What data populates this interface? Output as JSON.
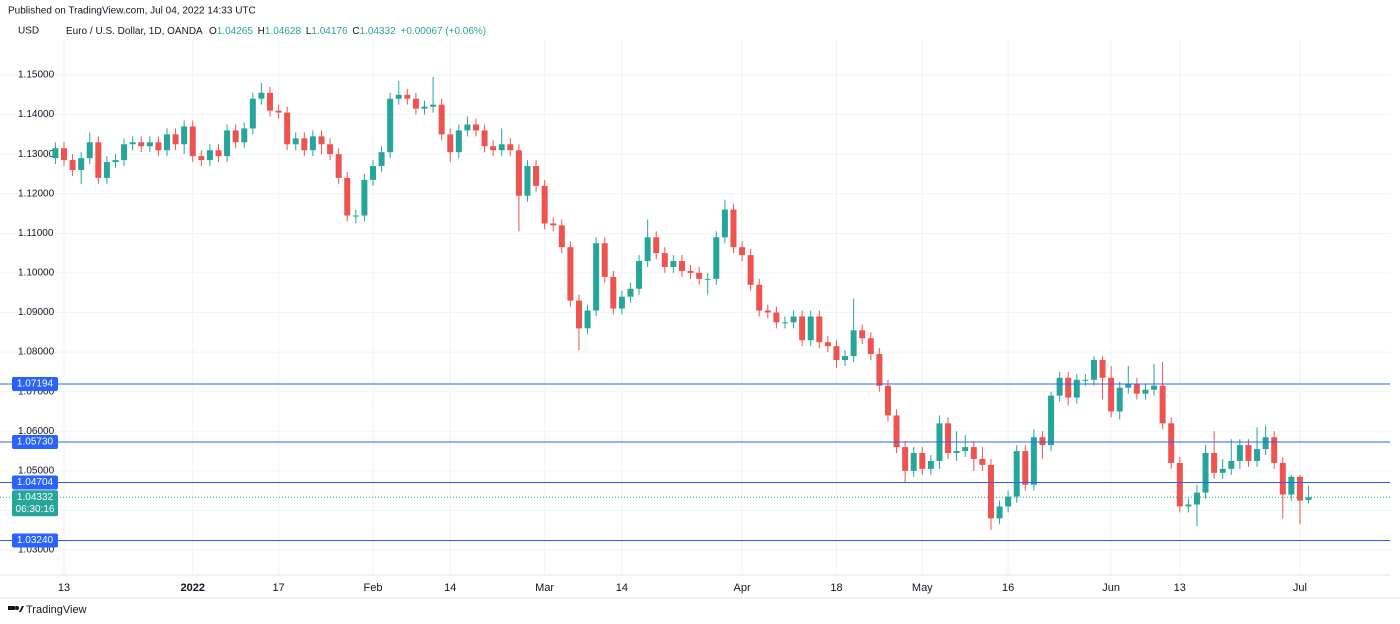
{
  "header": {
    "published": "Published on TradingView.com, Jul 04, 2022 14:33 UTC",
    "currency": "USD",
    "symbol": "Euro / U.S. Dollar, 1D, OANDA",
    "o_label": "O",
    "h_label": "H",
    "l_label": "L",
    "c_label": "C",
    "change": "+0.00067 (+0.06%)"
  },
  "footer": "TradingView",
  "chart_data": {
    "type": "candlestick",
    "up_color": "#26a69a",
    "down_color": "#ef5350",
    "grid": true,
    "categories": [
      null,
      "13",
      null,
      null,
      null,
      null,
      null,
      null,
      null,
      null,
      null,
      null,
      null,
      null,
      null,
      null,
      "2022",
      null,
      null,
      null,
      null,
      null,
      null,
      null,
      null,
      null,
      "17",
      null,
      null,
      null,
      null,
      null,
      null,
      null,
      null,
      null,
      null,
      "Feb",
      null,
      null,
      null,
      null,
      null,
      null,
      null,
      null,
      "14",
      null,
      null,
      null,
      null,
      null,
      null,
      null,
      null,
      null,
      null,
      "Mar",
      null,
      null,
      null,
      null,
      null,
      null,
      null,
      null,
      "14",
      null,
      null,
      null,
      null,
      null,
      null,
      null,
      null,
      null,
      null,
      null,
      null,
      null,
      "Apr",
      null,
      null,
      null,
      null,
      null,
      null,
      null,
      null,
      null,
      null,
      "18",
      null,
      null,
      null,
      null,
      null,
      null,
      null,
      null,
      null,
      "May",
      null,
      null,
      null,
      null,
      null,
      null,
      null,
      null,
      null,
      "16",
      null,
      null,
      null,
      null,
      null,
      null,
      null,
      null,
      null,
      null,
      null,
      "Jun",
      null,
      null,
      null,
      null,
      null,
      null,
      null,
      "13",
      null,
      null,
      null,
      null,
      null,
      null,
      null,
      null,
      null,
      null,
      null,
      null,
      null,
      "Jul",
      null
    ],
    "open": [
      1.129,
      1.1315,
      1.1285,
      1.126,
      1.129,
      1.133,
      1.124,
      1.128,
      1.1285,
      1.1325,
      1.133,
      1.132,
      1.133,
      1.131,
      1.135,
      1.1325,
      1.137,
      1.1295,
      1.1285,
      1.131,
      1.1295,
      1.136,
      1.133,
      1.1365,
      1.144,
      1.1455,
      1.141,
      1.1405,
      1.1325,
      1.134,
      1.131,
      1.1345,
      1.1325,
      1.13,
      1.124,
      1.1145,
      1.1145,
      1.1235,
      1.127,
      1.1305,
      1.144,
      1.145,
      1.144,
      1.1415,
      1.142,
      1.1425,
      1.135,
      1.1305,
      1.136,
      1.1375,
      1.136,
      1.132,
      1.131,
      1.1325,
      1.131,
      1.1195,
      1.127,
      1.122,
      1.1125,
      1.112,
      1.1065,
      1.093,
      1.086,
      1.0905,
      1.1075,
      1.099,
      1.091,
      1.094,
      1.096,
      1.103,
      1.109,
      1.105,
      1.1015,
      1.103,
      1.1005,
      1.1,
      1.0985,
      1.0985,
      1.109,
      1.116,
      1.1065,
      1.1045,
      1.097,
      1.0905,
      1.09,
      1.0875,
      1.0875,
      1.089,
      1.083,
      1.089,
      1.0825,
      1.0815,
      1.078,
      1.079,
      1.0855,
      1.0835,
      1.0795,
      1.0715,
      1.064,
      1.056,
      1.05,
      1.0545,
      1.0505,
      1.0525,
      1.062,
      1.0545,
      1.055,
      1.056,
      1.053,
      1.0515,
      1.038,
      1.041,
      1.0435,
      1.055,
      1.0465,
      1.0585,
      1.0565,
      1.069,
      1.0735,
      1.0685,
      1.073,
      1.073,
      1.078,
      1.0735,
      1.065,
      1.071,
      1.072,
      1.0695,
      1.0705,
      1.0715,
      1.062,
      1.052,
      1.041,
      1.0415,
      1.0445,
      1.0545,
      1.0495,
      1.0505,
      1.0525,
      1.0565,
      1.0525,
      1.0555,
      1.0585,
      1.052,
      1.044,
      1.0485,
      1.04265
    ],
    "high": [
      1.133,
      1.133,
      1.13,
      1.1305,
      1.1355,
      1.1345,
      1.1295,
      1.13,
      1.134,
      1.1345,
      1.1345,
      1.1345,
      1.1345,
      1.1365,
      1.1365,
      1.1385,
      1.1385,
      1.131,
      1.1325,
      1.1325,
      1.1375,
      1.1375,
      1.138,
      1.1455,
      1.148,
      1.147,
      1.1425,
      1.142,
      1.1355,
      1.1355,
      1.136,
      1.136,
      1.134,
      1.1315,
      1.1255,
      1.116,
      1.125,
      1.1285,
      1.132,
      1.1455,
      1.1485,
      1.1465,
      1.1455,
      1.1435,
      1.1495,
      1.144,
      1.1365,
      1.1375,
      1.1395,
      1.139,
      1.1375,
      1.1335,
      1.1365,
      1.134,
      1.1325,
      1.1285,
      1.1285,
      1.1235,
      1.114,
      1.1135,
      1.108,
      1.0945,
      1.092,
      1.109,
      1.109,
      1.1005,
      1.0955,
      1.0975,
      1.1045,
      1.1135,
      1.1105,
      1.1065,
      1.1045,
      1.1045,
      1.102,
      1.1015,
      1.1,
      1.1105,
      1.1185,
      1.1175,
      1.108,
      1.106,
      1.0985,
      1.092,
      1.0915,
      1.089,
      1.0905,
      1.0905,
      1.0905,
      1.0905,
      1.084,
      1.083,
      1.0805,
      1.0935,
      1.087,
      1.085,
      1.081,
      1.073,
      1.0655,
      1.0575,
      1.056,
      1.056,
      1.054,
      1.064,
      1.0635,
      1.06,
      1.059,
      1.0575,
      1.056,
      1.053,
      1.0425,
      1.045,
      1.0565,
      1.0565,
      1.0605,
      1.06,
      1.07,
      1.075,
      1.075,
      1.0745,
      1.0745,
      1.079,
      1.079,
      1.0765,
      1.0725,
      1.0765,
      1.0735,
      1.072,
      1.077,
      1.0775,
      1.0635,
      1.0535,
      1.043,
      1.0465,
      1.0565,
      1.06,
      1.053,
      1.058,
      1.058,
      1.058,
      1.061,
      1.0615,
      1.06,
      1.0535,
      1.049,
      1.049,
      1.04628
    ],
    "low": [
      1.1275,
      1.127,
      1.1245,
      1.1225,
      1.1275,
      1.1225,
      1.1225,
      1.1265,
      1.127,
      1.131,
      1.1305,
      1.1305,
      1.1295,
      1.1295,
      1.131,
      1.13,
      1.128,
      1.127,
      1.127,
      1.128,
      1.128,
      1.1315,
      1.1315,
      1.135,
      1.1425,
      1.1395,
      1.139,
      1.131,
      1.131,
      1.1295,
      1.1295,
      1.13,
      1.1285,
      1.1225,
      1.113,
      1.1125,
      1.113,
      1.122,
      1.1255,
      1.129,
      1.1425,
      1.1425,
      1.14,
      1.14,
      1.1405,
      1.1335,
      1.128,
      1.129,
      1.1345,
      1.1345,
      1.1305,
      1.1295,
      1.1295,
      1.1295,
      1.1105,
      1.118,
      1.1205,
      1.111,
      1.1105,
      1.105,
      1.0915,
      1.0805,
      1.0845,
      1.089,
      1.0975,
      1.0895,
      1.0895,
      1.0925,
      1.0945,
      1.1015,
      1.1035,
      1.1,
      1.1,
      1.099,
      1.0985,
      1.097,
      1.0945,
      1.097,
      1.1075,
      1.105,
      1.103,
      1.0955,
      1.089,
      1.0885,
      1.086,
      1.086,
      1.086,
      1.0815,
      1.0815,
      1.081,
      1.08,
      1.076,
      1.0765,
      1.0775,
      1.082,
      1.078,
      1.07,
      1.0625,
      1.0545,
      1.047,
      1.0485,
      1.049,
      1.049,
      1.0505,
      1.053,
      1.0525,
      1.0535,
      1.05,
      1.05,
      1.035,
      1.0365,
      1.0395,
      1.042,
      1.045,
      1.045,
      1.053,
      1.055,
      1.0675,
      1.0665,
      1.067,
      1.0715,
      1.0715,
      1.068,
      1.0635,
      1.063,
      1.0695,
      1.068,
      1.068,
      1.069,
      1.0605,
      1.0505,
      1.0395,
      1.0395,
      1.036,
      1.043,
      1.048,
      1.048,
      1.049,
      1.0505,
      1.051,
      1.051,
      1.054,
      1.0505,
      1.038,
      1.0425,
      1.0365,
      1.04176
    ],
    "close": [
      1.1315,
      1.1285,
      1.126,
      1.129,
      1.133,
      1.124,
      1.128,
      1.1285,
      1.1325,
      1.133,
      1.132,
      1.133,
      1.131,
      1.135,
      1.1325,
      1.137,
      1.1295,
      1.1285,
      1.131,
      1.1295,
      1.136,
      1.133,
      1.1365,
      1.144,
      1.1455,
      1.141,
      1.1405,
      1.1325,
      1.134,
      1.131,
      1.1345,
      1.1325,
      1.13,
      1.124,
      1.1145,
      1.1145,
      1.1235,
      1.127,
      1.1305,
      1.144,
      1.145,
      1.144,
      1.1415,
      1.142,
      1.1425,
      1.135,
      1.1305,
      1.136,
      1.1375,
      1.136,
      1.132,
      1.131,
      1.1325,
      1.131,
      1.1195,
      1.127,
      1.122,
      1.1125,
      1.112,
      1.1065,
      1.093,
      1.086,
      1.0905,
      1.1075,
      1.099,
      1.091,
      1.094,
      1.096,
      1.103,
      1.109,
      1.105,
      1.1015,
      1.103,
      1.1005,
      1.1,
      1.0985,
      1.0985,
      1.109,
      1.116,
      1.1065,
      1.1045,
      1.097,
      1.0905,
      1.09,
      1.0875,
      1.0875,
      1.089,
      1.083,
      1.089,
      1.0825,
      1.0815,
      1.078,
      1.079,
      1.0855,
      1.0835,
      1.0795,
      1.0715,
      1.064,
      1.056,
      1.05,
      1.0545,
      1.0505,
      1.0525,
      1.062,
      1.0545,
      1.055,
      1.056,
      1.053,
      1.0515,
      1.038,
      1.041,
      1.0435,
      1.055,
      1.0465,
      1.0585,
      1.0565,
      1.069,
      1.0735,
      1.0685,
      1.073,
      1.073,
      1.078,
      1.0735,
      1.065,
      1.071,
      1.072,
      1.0695,
      1.0705,
      1.0715,
      1.062,
      1.052,
      1.041,
      1.0415,
      1.0445,
      1.0545,
      1.0495,
      1.0505,
      1.0525,
      1.0565,
      1.0525,
      1.0555,
      1.0585,
      1.052,
      1.044,
      1.0485,
      1.0425,
      1.04332
    ],
    "ylim": [
      1.02495,
      1.15884
    ],
    "yticks": [
      {
        "value": 1.03,
        "label": "1.03000"
      },
      {
        "value": 1.04,
        "label": "1.04000"
      },
      {
        "value": 1.05,
        "label": "1.05000"
      },
      {
        "value": 1.06,
        "label": "1.06000"
      },
      {
        "value": 1.07,
        "label": "1.07000"
      },
      {
        "value": 1.08,
        "label": "1.08000"
      },
      {
        "value": 1.09,
        "label": "1.09000"
      },
      {
        "value": 1.1,
        "label": "1.10000"
      },
      {
        "value": 1.11,
        "label": "1.11000"
      },
      {
        "value": 1.12,
        "label": "1.12000"
      },
      {
        "value": 1.13,
        "label": "1.13000"
      },
      {
        "value": 1.14,
        "label": "1.14000"
      },
      {
        "value": 1.15,
        "label": "1.15000"
      }
    ],
    "hlines": [
      {
        "value": 1.07194,
        "label": "1.07194"
      },
      {
        "value": 1.0573,
        "label": "1.05730"
      },
      {
        "value": 1.04704,
        "label": "1.04704"
      },
      {
        "value": 1.0324,
        "label": "1.03240"
      }
    ],
    "hline_color": "#2962ff",
    "countdown": "06:30:16"
  }
}
